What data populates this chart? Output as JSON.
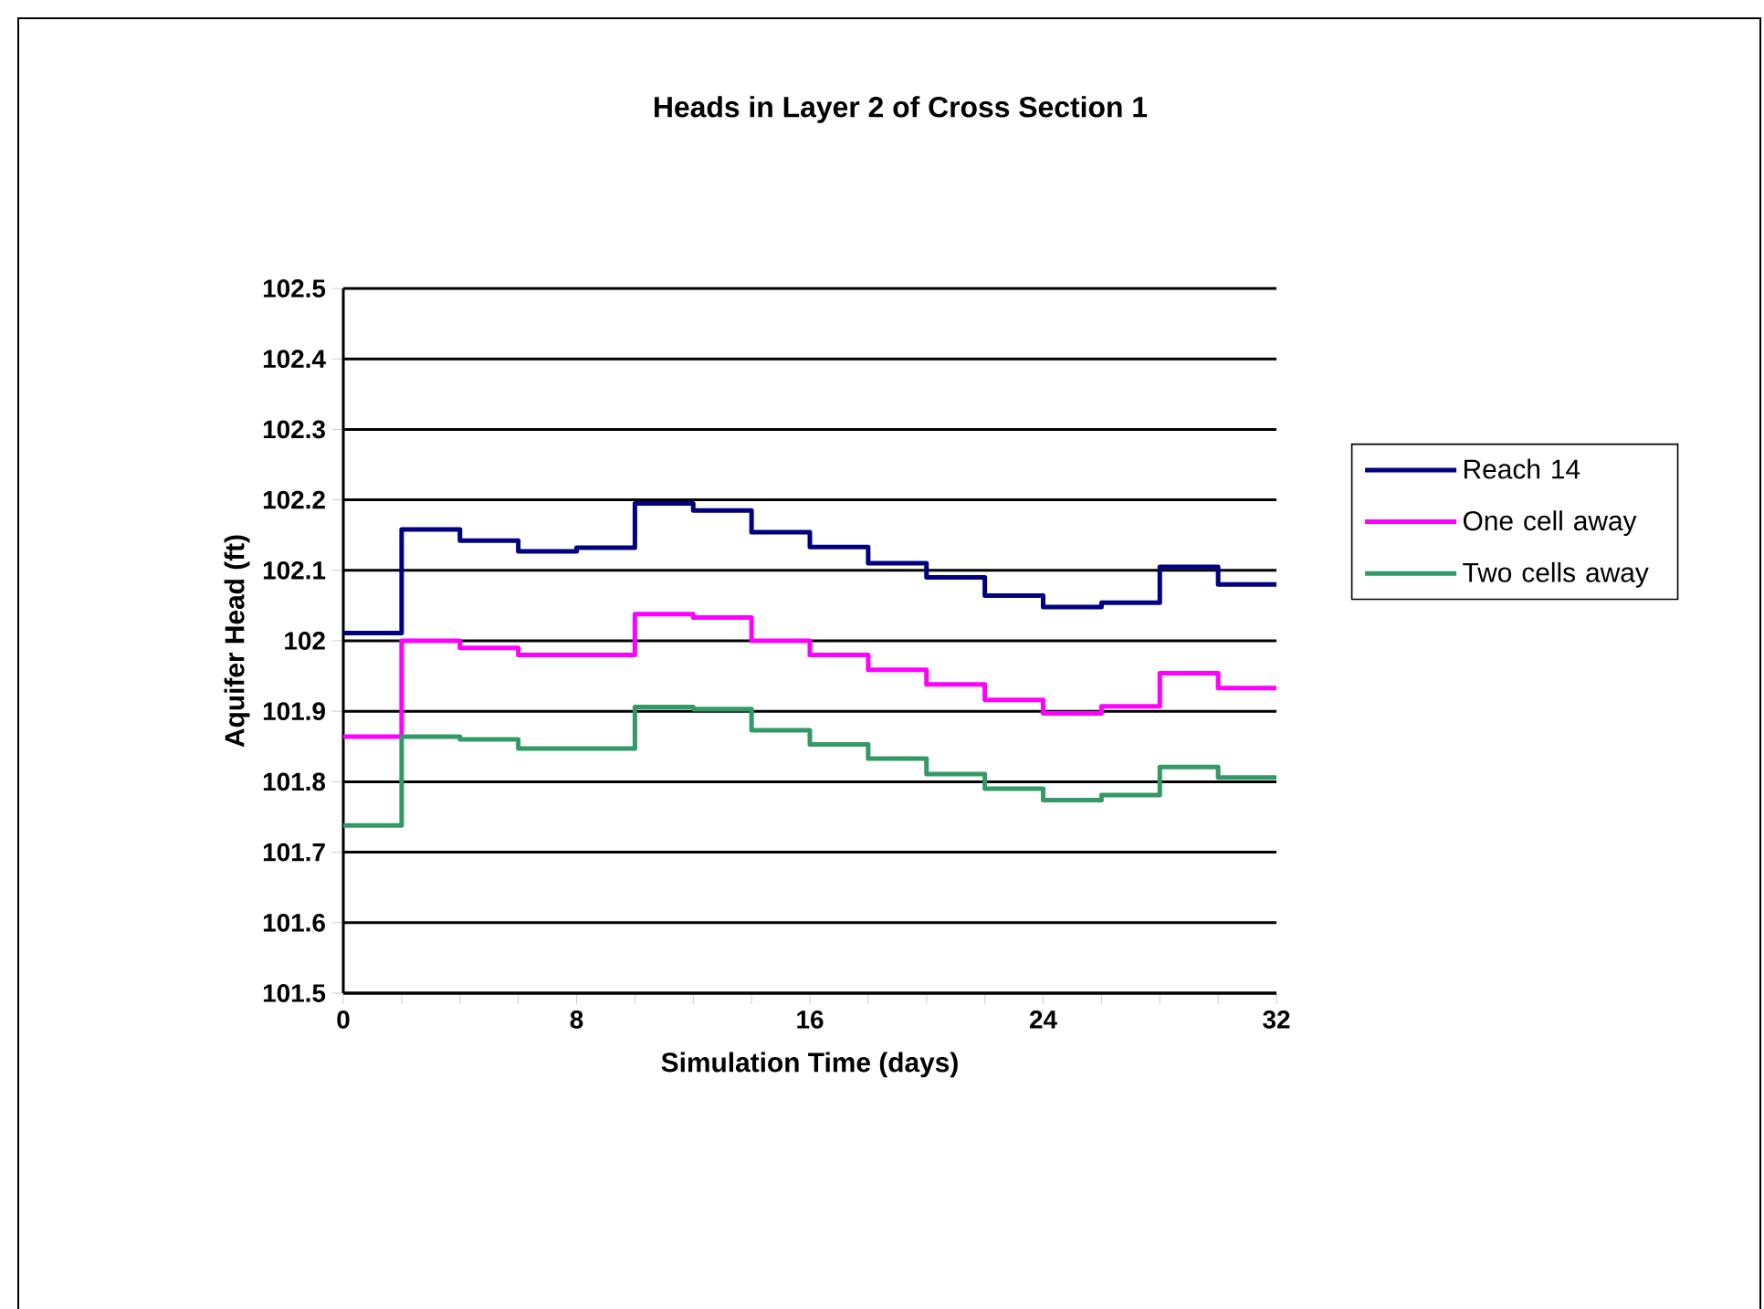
{
  "chart_data": {
    "type": "step",
    "title": "Heads in Layer 2  of Cross Section 1",
    "xlabel": "Simulation Time (days)",
    "ylabel": "Aquifer Head (ft)",
    "x": [
      0,
      2,
      4,
      6,
      8,
      10,
      12,
      14,
      16,
      18,
      20,
      22,
      24,
      26,
      28,
      30,
      32
    ],
    "series": [
      {
        "name": "Reach 14",
        "color": "#000080",
        "values": [
          102.011,
          102.158,
          102.142,
          102.127,
          102.132,
          102.195,
          102.185,
          102.154,
          102.133,
          102.11,
          102.09,
          102.064,
          102.048,
          102.054,
          102.105,
          102.08,
          102.08
        ]
      },
      {
        "name": "One cell away",
        "color": "#ff00ff",
        "values": [
          101.864,
          102.0,
          101.99,
          101.98,
          101.98,
          102.038,
          102.033,
          102.0,
          101.98,
          101.959,
          101.938,
          101.916,
          101.897,
          101.907,
          101.954,
          101.933,
          101.933
        ]
      },
      {
        "name": "Two cells away",
        "color": "#339966",
        "values": [
          101.738,
          101.864,
          101.86,
          101.847,
          101.847,
          101.906,
          101.903,
          101.873,
          101.853,
          101.833,
          101.811,
          101.79,
          101.774,
          101.781,
          101.821,
          101.806,
          101.806
        ]
      }
    ],
    "xlim": [
      0,
      32
    ],
    "ylim": [
      101.5,
      102.5
    ],
    "xticks": [
      0,
      {
        "value": 2,
        "label": null
      },
      {
        "value": 4,
        "label": null
      },
      {
        "value": 6,
        "label": null
      },
      8,
      {
        "value": 10,
        "label": null
      },
      {
        "value": 12,
        "label": null
      },
      {
        "value": 14,
        "label": null
      },
      16,
      {
        "value": 18,
        "label": null
      },
      {
        "value": 20,
        "label": null
      },
      {
        "value": 22,
        "label": null
      },
      24,
      {
        "value": 26,
        "label": null
      },
      {
        "value": 28,
        "label": null
      },
      {
        "value": 30,
        "label": null
      },
      32
    ],
    "yticks": [
      101.5,
      101.6,
      101.7,
      101.8,
      101.9,
      102,
      102.1,
      102.2,
      102.3,
      102.4,
      102.5
    ],
    "grid": "y",
    "legend": "right",
    "marker": "none",
    "line_style": "solid"
  }
}
